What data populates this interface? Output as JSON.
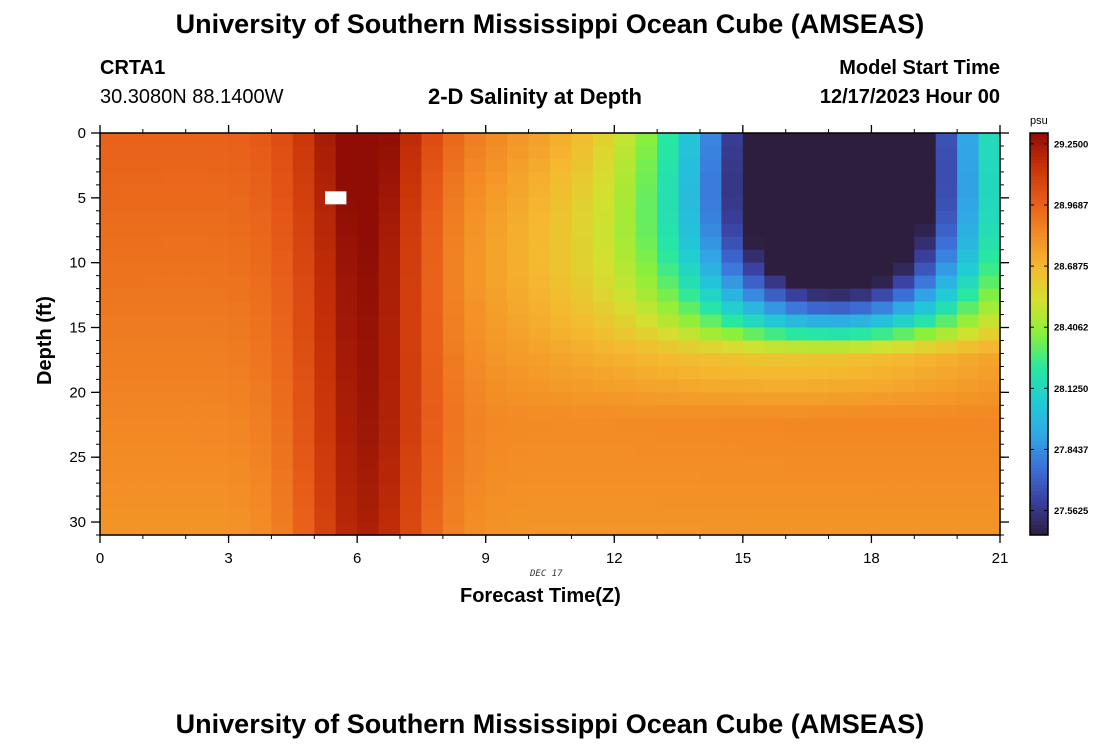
{
  "page": {
    "title": "University of Southern Mississippi Ocean Cube (AMSEAS)",
    "footer_title": "University of Southern Mississippi Ocean Cube (AMSEAS)",
    "station_id": "CRTA1",
    "station_coords": "30.3080N  88.1400W",
    "chart_subtitle": "2-D Salinity at Depth",
    "model_start_label": "Model Start Time",
    "model_start_value": "12/17/2023 Hour 00",
    "date_tag": "DEC 17"
  },
  "chart_data": {
    "type": "heatmap",
    "title": "2-D Salinity at Depth",
    "xlabel": "Forecast Time(Z)",
    "ylabel": "Depth (ft)",
    "xlim": [
      0,
      21
    ],
    "ylim": [
      0,
      31
    ],
    "y_inverted": true,
    "x_ticks": [
      0,
      3,
      6,
      9,
      12,
      15,
      18,
      21
    ],
    "y_ticks": [
      0,
      5,
      10,
      15,
      20,
      25,
      30
    ],
    "colorbar": {
      "unit": "psu",
      "min": 27.45,
      "max": 29.3,
      "tick_values": [
        29.25,
        28.96875,
        28.6875,
        28.40625,
        28.125,
        27.84375,
        27.5625
      ],
      "tick_labels": [
        "29.2500",
        "28.9687",
        "28.6875",
        "28.4062",
        "28.1250",
        "27.8437",
        "27.5625"
      ],
      "colors": [
        "#2d1e3e",
        "#3a40a0",
        "#3d70d8",
        "#30a8e6",
        "#20ccd4",
        "#28e8a0",
        "#8af03a",
        "#d4e030",
        "#f5b830",
        "#f38a25",
        "#e65a18",
        "#c83208",
        "#8f0d05"
      ]
    },
    "model": {
      "grid": {
        "x_step": 0.5,
        "y_step": 1
      },
      "base": {
        "surface": 28.97,
        "bottom": 28.8
      },
      "features": [
        {
          "name": "high-salinity band",
          "center_x": 6.2,
          "spread_x": 1.5,
          "amplitude": 0.42
        },
        {
          "name": "low-salinity pocket",
          "center_x": 17.3,
          "center_y": 2,
          "spread_x": 3.3,
          "depth_extent": 17,
          "amplitude": -1.72
        },
        {
          "name": "low-salinity halo",
          "center_x": 16.5,
          "spread_x": 5.5,
          "depth_extent": 22,
          "amplitude": -0.45
        },
        {
          "name": "mid-depth freshening",
          "center_x": 11,
          "spread_x": 4,
          "amplitude": -0.12
        }
      ],
      "missing_cell": {
        "x": [
          5.25,
          5.75
        ],
        "y": [
          4.5,
          5.5
        ]
      }
    }
  }
}
